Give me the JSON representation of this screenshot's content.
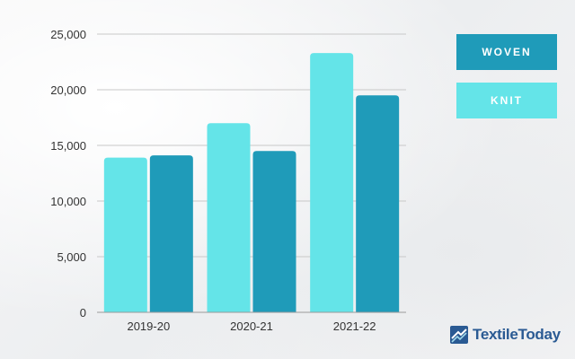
{
  "chart_data": {
    "type": "bar",
    "categories": [
      "2019-20",
      "2020-21",
      "2021-22"
    ],
    "series": [
      {
        "name": "KNIT",
        "values": [
          13900,
          17000,
          23300
        ]
      },
      {
        "name": "WOVEN",
        "values": [
          14100,
          14500,
          19500
        ]
      }
    ],
    "ylim": [
      0,
      25000
    ],
    "yticks": [
      0,
      5000,
      10000,
      15000,
      20000,
      25000
    ],
    "ytick_labels": [
      "0",
      "5,000",
      "10,000",
      "15,000",
      "20,000",
      "25,000"
    ],
    "grid": true,
    "legend_position": "top-right",
    "title": "",
    "xlabel": "",
    "ylabel": ""
  },
  "legend": {
    "woven_label": "WOVEN",
    "knit_label": "KNIT"
  },
  "colors": {
    "knit": "#64e4e8",
    "woven": "#1f9bb9",
    "grid": "#c8c8c8",
    "axis": "#9a9a9a",
    "logo": "#2a5a93"
  },
  "logo": {
    "text": "TextileToday",
    "icon": "textile-today-logo-icon"
  }
}
